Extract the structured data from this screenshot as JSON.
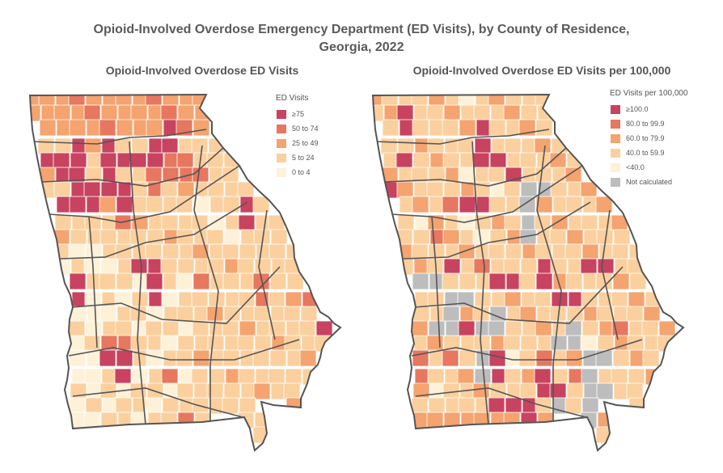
{
  "title_line1": "Opioid-Involved Overdose Emergency Department (ED Visits), by County of Residence,",
  "title_line2": "Georgia, 2022",
  "maps": [
    {
      "title": "Opioid-Involved Overdose ED Visits",
      "legend_title": "ED Visits",
      "legend": [
        {
          "label": "≥75",
          "color": "#c8435f"
        },
        {
          "label": "50 to 74",
          "color": "#e7775f"
        },
        {
          "label": "25 to 49",
          "color": "#f5a36f"
        },
        {
          "label": "5 to 24",
          "color": "#fbd09e"
        },
        {
          "label": "0 to 4",
          "color": "#fdf1d8"
        }
      ]
    },
    {
      "title": "Opioid-Involved Overdose ED Visits per 100,000",
      "legend_title": "ED Visits per 100,000",
      "legend": [
        {
          "label": "≥100.0",
          "color": "#c8435f"
        },
        {
          "label": "80.0 to 99.9",
          "color": "#e7775f"
        },
        {
          "label": "60.0 to 79.9",
          "color": "#f5a36f"
        },
        {
          "label": "40.0 to 59.9",
          "color": "#fbd09e"
        },
        {
          "label": "<40.0",
          "color": "#fdf1d8"
        },
        {
          "label": "Not calculated",
          "color": "#bdbdbd"
        }
      ]
    }
  ]
}
